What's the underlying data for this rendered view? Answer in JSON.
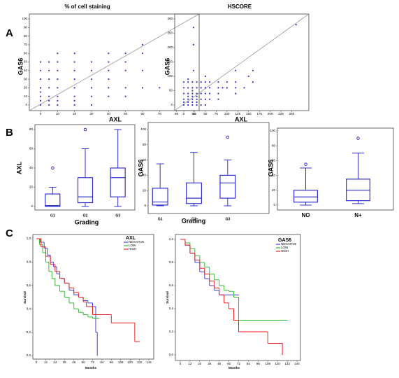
{
  "panel_labels": [
    "A",
    "B",
    "C"
  ],
  "chart_data": [
    {
      "type": "scatter",
      "title": "% of cell staining",
      "x_label": "AXL",
      "y_label": "GAS6",
      "color": "#3333cc",
      "xlim": [
        0,
        90
      ],
      "ylim": [
        0,
        100
      ],
      "xticks": [
        0,
        10,
        20,
        30,
        40,
        50,
        60,
        70,
        80,
        90
      ],
      "yticks": [
        0,
        10,
        20,
        30,
        40,
        50,
        60,
        70,
        80,
        90,
        100
      ],
      "x": [
        0,
        0,
        0,
        0,
        0,
        0,
        0,
        0,
        5,
        5,
        5,
        5,
        5,
        5,
        5,
        10,
        10,
        10,
        10,
        10,
        10,
        10,
        10,
        20,
        20,
        20,
        20,
        20,
        20,
        20,
        20,
        30,
        30,
        30,
        30,
        30,
        30,
        40,
        40,
        40,
        40,
        40,
        40,
        50,
        50,
        50,
        50,
        50,
        60,
        60,
        60,
        70,
        60,
        90,
        90,
        90
      ],
      "values": [
        0,
        5,
        10,
        15,
        20,
        30,
        40,
        50,
        0,
        5,
        10,
        20,
        30,
        40,
        50,
        0,
        5,
        10,
        20,
        30,
        40,
        50,
        60,
        0,
        5,
        10,
        20,
        30,
        40,
        50,
        60,
        0,
        10,
        20,
        30,
        40,
        50,
        10,
        20,
        30,
        40,
        50,
        60,
        10,
        20,
        40,
        50,
        60,
        20,
        40,
        60,
        20,
        70,
        40,
        70,
        90
      ]
    },
    {
      "type": "scatter",
      "title": "HSCORE",
      "x_label": "AXL",
      "y_label": "GAS6",
      "color": "#3333cc",
      "xlim": [
        0,
        275
      ],
      "ylim": [
        0,
        300
      ],
      "xticks": [
        0,
        25,
        50,
        75,
        100,
        125,
        150,
        175,
        200,
        225,
        250
      ],
      "yticks": [
        0,
        50,
        100,
        150,
        200,
        250,
        300
      ],
      "x": [
        0,
        0,
        0,
        0,
        0,
        0,
        10,
        10,
        10,
        10,
        10,
        10,
        10,
        10,
        20,
        20,
        20,
        20,
        20,
        20,
        20,
        20,
        30,
        30,
        30,
        30,
        30,
        30,
        30,
        40,
        40,
        40,
        40,
        40,
        50,
        50,
        50,
        50,
        50,
        50,
        60,
        60,
        60,
        60,
        80,
        80,
        80,
        80,
        90,
        100,
        100,
        120,
        120,
        120,
        120,
        140,
        160,
        160,
        150,
        260
      ],
      "values": [
        0,
        10,
        20,
        40,
        60,
        80,
        0,
        10,
        20,
        30,
        40,
        60,
        80,
        90,
        0,
        10,
        20,
        30,
        40,
        50,
        60,
        80,
        0,
        10,
        20,
        30,
        40,
        60,
        80,
        0,
        20,
        40,
        60,
        80,
        0,
        20,
        40,
        60,
        80,
        100,
        20,
        40,
        60,
        80,
        20,
        40,
        60,
        80,
        60,
        60,
        80,
        40,
        60,
        80,
        120,
        60,
        80,
        120,
        100,
        280
      ]
    },
    {
      "type": "box",
      "y_label": "AXL",
      "x_label": "Grading",
      "color": "#3333cc",
      "ylim": [
        0,
        80
      ],
      "yticks": [
        0,
        20,
        40,
        60,
        80
      ],
      "categories": [
        "G1",
        "G2",
        "G3"
      ],
      "boxes": [
        {
          "min": 0,
          "q1": 0,
          "median": 1,
          "q3": 13,
          "max": 20,
          "outliers": [
            40
          ]
        },
        {
          "min": 0,
          "q1": 4,
          "median": 10,
          "q3": 30,
          "max": 60,
          "outliers": [
            80
          ]
        },
        {
          "min": 0,
          "q1": 10,
          "median": 30,
          "q3": 40,
          "max": 80,
          "outliers": []
        }
      ]
    },
    {
      "type": "box",
      "y_label": "GAS6",
      "x_label": "Grading",
      "color": "#3333cc",
      "ylim": [
        0,
        100
      ],
      "yticks": [
        0,
        20,
        40,
        60,
        80,
        100
      ],
      "categories": [
        "G1",
        "G2",
        "G3"
      ],
      "boxes": [
        {
          "min": 0,
          "q1": 1,
          "median": 5,
          "q3": 23,
          "max": 55,
          "outliers": []
        },
        {
          "min": 0,
          "q1": 3,
          "median": 10,
          "q3": 30,
          "max": 70,
          "outliers": []
        },
        {
          "min": 0,
          "q1": 10,
          "median": 30,
          "q3": 40,
          "max": 60,
          "outliers": [
            90
          ]
        }
      ]
    },
    {
      "type": "box",
      "y_label": "GAS6",
      "color": "#3333cc",
      "ylim": [
        0,
        100
      ],
      "yticks": [
        0,
        20,
        40,
        60,
        80,
        100
      ],
      "categories": [
        "NO",
        "N+"
      ],
      "boxes": [
        {
          "min": 0,
          "q1": 4,
          "median": 11,
          "q3": 20,
          "max": 50,
          "outliers": [
            55
          ]
        },
        {
          "min": 2,
          "q1": 6,
          "median": 20,
          "q3": 35,
          "max": 70,
          "outliers": [
            90
          ]
        }
      ]
    },
    {
      "type": "step",
      "title": "AXL",
      "x_label": "Months",
      "y_label": "Survival",
      "xlim": [
        0,
        144
      ],
      "ylim": [
        0,
        1
      ],
      "xticks": [
        0,
        12,
        24,
        36,
        48,
        60,
        72,
        84,
        96,
        108,
        120,
        132,
        144
      ],
      "yticks": [
        {
          "value": 0,
          "label": "0,0"
        },
        {
          "value": 0.2,
          "label": "0,2"
        },
        {
          "value": 0.4,
          "label": "0,4"
        },
        {
          "value": 0.6,
          "label": "0,6"
        },
        {
          "value": 0.8,
          "label": "0,8"
        },
        {
          "value": 1,
          "label": "1,0"
        }
      ],
      "series": [
        {
          "name": "NEGATIVE",
          "color": "#4444dd",
          "x": [
            0,
            5,
            10,
            14,
            18,
            22,
            26,
            30,
            36,
            42,
            48,
            54,
            60,
            66,
            72,
            76,
            78
          ],
          "values": [
            1,
            0.97,
            0.92,
            0.86,
            0.8,
            0.76,
            0.7,
            0.66,
            0.62,
            0.56,
            0.52,
            0.5,
            0.47,
            0.45,
            0.42,
            0.2,
            0
          ]
        },
        {
          "name": "LOW",
          "color": "#33bb33",
          "x": [
            0,
            4,
            8,
            12,
            16,
            20,
            24,
            30,
            36,
            42,
            48,
            54,
            60,
            66,
            72,
            80
          ],
          "values": [
            1,
            0.95,
            0.88,
            0.8,
            0.72,
            0.66,
            0.6,
            0.55,
            0.5,
            0.45,
            0.4,
            0.37,
            0.35,
            0.33,
            0.32,
            0.32
          ]
        },
        {
          "name": "HIGH",
          "color": "#ee2222",
          "x": [
            0,
            6,
            12,
            18,
            24,
            30,
            36,
            42,
            48,
            54,
            60,
            64,
            72,
            96,
            126,
            132
          ],
          "values": [
            1,
            0.93,
            0.85,
            0.78,
            0.72,
            0.66,
            0.62,
            0.58,
            0.54,
            0.5,
            0.46,
            0.42,
            0.35,
            0.28,
            0.12,
            0.12
          ]
        }
      ]
    },
    {
      "type": "step",
      "title": "GAS6",
      "x_label": "Months",
      "y_label": "Survival",
      "xlim": [
        0,
        144
      ],
      "ylim": [
        0,
        1
      ],
      "xticks": [
        0,
        12,
        24,
        36,
        48,
        60,
        72,
        84,
        96,
        108,
        120,
        132,
        144
      ],
      "yticks": [
        {
          "value": 0,
          "label": "0,0"
        },
        {
          "value": 0.2,
          "label": "0,2"
        },
        {
          "value": 0.4,
          "label": "0,4"
        },
        {
          "value": 0.6,
          "label": "0,6"
        },
        {
          "value": 0.8,
          "label": "0,8"
        },
        {
          "value": 1,
          "label": "1,0"
        }
      ],
      "series": [
        {
          "name": "NEGATIVE",
          "color": "#4444dd",
          "x": [
            0,
            6,
            12,
            18,
            24,
            30,
            36,
            42,
            48,
            54,
            72
          ],
          "values": [
            1,
            0.95,
            0.88,
            0.8,
            0.72,
            0.66,
            0.6,
            0.56,
            0.52,
            0.52,
            0.52
          ]
        },
        {
          "name": "LOW",
          "color": "#33bb33",
          "x": [
            0,
            6,
            12,
            18,
            24,
            30,
            36,
            42,
            48,
            54,
            60,
            66,
            72,
            132
          ],
          "values": [
            1,
            0.97,
            0.92,
            0.86,
            0.8,
            0.76,
            0.7,
            0.65,
            0.6,
            0.56,
            0.55,
            0.5,
            0.3,
            0.3
          ]
        },
        {
          "name": "HIGH",
          "color": "#ee2222",
          "x": [
            0,
            6,
            12,
            18,
            24,
            30,
            36,
            42,
            48,
            54,
            60,
            66,
            72,
            84,
            108,
            126
          ],
          "values": [
            1,
            0.95,
            0.88,
            0.82,
            0.75,
            0.7,
            0.64,
            0.58,
            0.52,
            0.45,
            0.4,
            0.3,
            0.2,
            0.2,
            0.1,
            0
          ]
        }
      ]
    }
  ]
}
